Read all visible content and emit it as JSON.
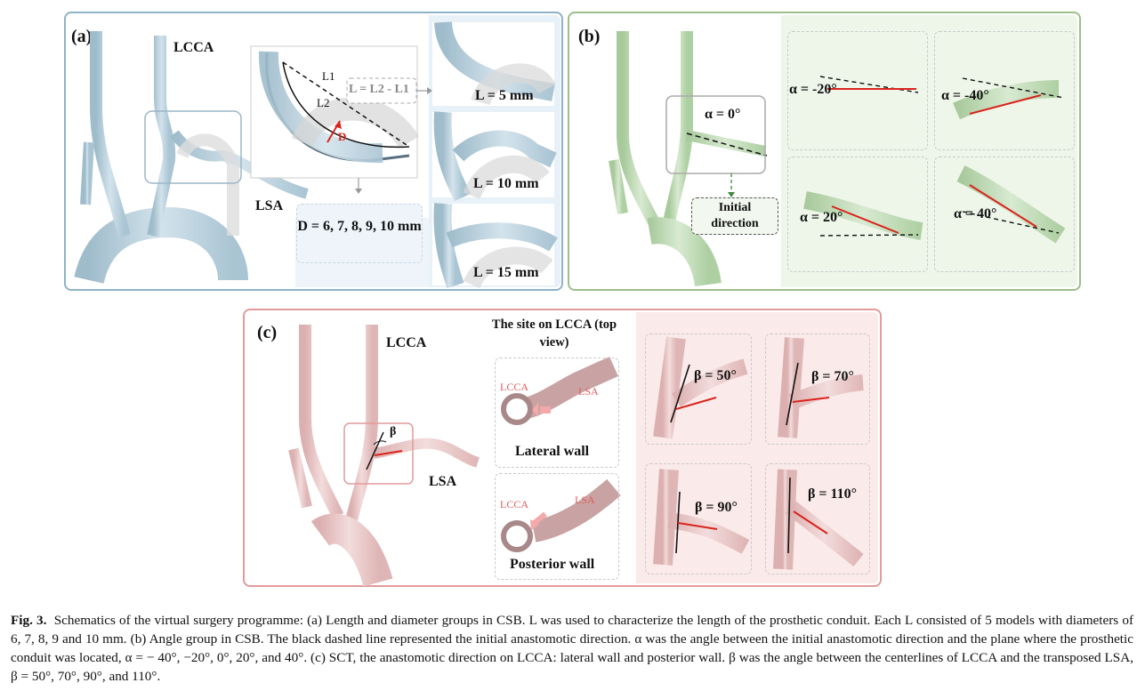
{
  "panel_a": {
    "label": "(a)",
    "lcca": "LCCA",
    "lsa": "LSA",
    "l1": "L1",
    "l2": "L2",
    "d_mark": "D",
    "formula": "L = L2 - L1",
    "d_values": "D = 6, 7, 8, 9, 10 mm",
    "lengths": [
      "L = 5 mm",
      "L = 10 mm",
      "L = 15 mm"
    ]
  },
  "panel_b": {
    "label": "(b)",
    "alpha_zero": "α = 0°",
    "initial_direction": "Initial direction",
    "alphas": [
      "α = -20°",
      "α = -40°",
      "α = 20°",
      "α = 40°"
    ]
  },
  "panel_c": {
    "label": "(c)",
    "lcca": "LCCA",
    "lsa": "LSA",
    "beta": "β",
    "site_title": "The site on LCCA (top view)",
    "inset_lcca": "LCCA",
    "inset_lsa": "LSA",
    "lateral": "Lateral wall",
    "posterior": "Posterior wall",
    "betas": [
      "β = 50°",
      "β = 70°",
      "β = 90°",
      "β = 110°"
    ]
  },
  "caption": {
    "fig": "Fig. 3.",
    "text": "Schematics of the virtual surgery programme: (a) Length and diameter groups in CSB. L was used to characterize the length of the prosthetic conduit. Each L consisted of 5 models with diameters of 6, 7, 8, 9 and 10 mm. (b) Angle group in CSB. The black dashed line represented the initial anastomotic direction. α was the angle between the initial anastomotic direction and the plane where the prosthetic conduit was located, α = − 40°, −20°, 0°, 20°, and 40°. (c) SCT, the anastomotic direction on LCCA: lateral wall and posterior wall. β was the angle between the centerlines of LCCA and the transposed LSA, β = 50°, 70°, 90°, and 110°."
  },
  "colors": {
    "blue_vessel": "#b7cfdc",
    "green_vessel": "#bcd9b2",
    "pink_vessel": "#ecc8c8",
    "red_line": "#d9241c"
  }
}
